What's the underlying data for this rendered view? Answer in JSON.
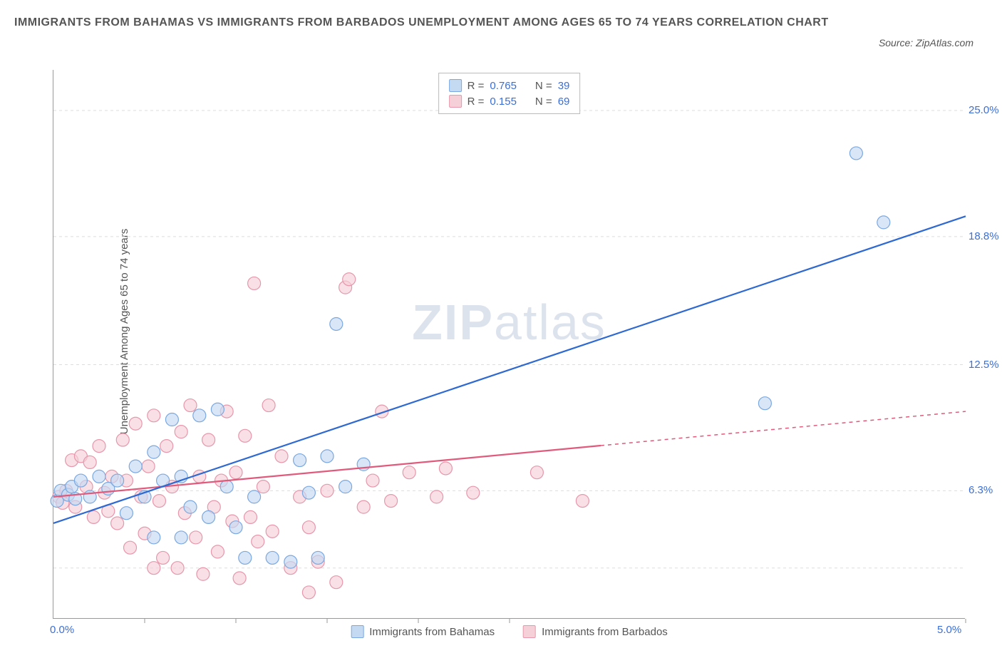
{
  "title": "IMMIGRANTS FROM BAHAMAS VS IMMIGRANTS FROM BARBADOS UNEMPLOYMENT AMONG AGES 65 TO 74 YEARS CORRELATION CHART",
  "source_label": "Source: ZipAtlas.com",
  "watermark_a": "ZIP",
  "watermark_b": "atlas",
  "chart": {
    "type": "scatter",
    "y_axis_label": "Unemployment Among Ages 65 to 74 years",
    "xlim": [
      0.0,
      5.0
    ],
    "ylim": [
      0.0,
      27.0
    ],
    "x_tick_labels": [
      {
        "pos": 0.0,
        "label": "0.0%"
      },
      {
        "pos": 5.0,
        "label": "5.0%"
      }
    ],
    "x_minor_ticks": [
      0.5,
      1.0,
      1.5,
      2.0,
      2.5,
      5.0
    ],
    "y_tick_labels": [
      {
        "pos": 6.3,
        "label": "6.3%"
      },
      {
        "pos": 12.5,
        "label": "12.5%"
      },
      {
        "pos": 18.8,
        "label": "18.8%"
      },
      {
        "pos": 25.0,
        "label": "25.0%"
      }
    ],
    "y_gridlines": [
      2.5,
      6.3,
      12.5,
      18.8,
      25.0
    ],
    "background_color": "#ffffff",
    "grid_color": "#dddddd",
    "axis_color": "#999999",
    "marker_radius": 9,
    "marker_stroke_width": 1.2,
    "series": [
      {
        "name": "Immigrants from Bahamas",
        "key": "bahamas",
        "fill_color": "#c4d9f2",
        "stroke_color": "#7aa8e0",
        "line_color": "#2e69d1",
        "R": "0.765",
        "N": "39",
        "regression": {
          "x0": 0.0,
          "y0": 4.7,
          "x1": 5.0,
          "y1": 19.8,
          "solid_until_x": 5.0
        },
        "points": [
          [
            0.02,
            5.8
          ],
          [
            0.04,
            6.3
          ],
          [
            0.08,
            6.1
          ],
          [
            0.1,
            6.5
          ],
          [
            0.12,
            5.9
          ],
          [
            0.15,
            6.8
          ],
          [
            0.2,
            6.0
          ],
          [
            0.25,
            7.0
          ],
          [
            0.3,
            6.4
          ],
          [
            0.35,
            6.8
          ],
          [
            0.4,
            5.2
          ],
          [
            0.45,
            7.5
          ],
          [
            0.5,
            6.0
          ],
          [
            0.55,
            8.2
          ],
          [
            0.6,
            6.8
          ],
          [
            0.65,
            9.8
          ],
          [
            0.7,
            7.0
          ],
          [
            0.75,
            5.5
          ],
          [
            0.8,
            10.0
          ],
          [
            0.85,
            5.0
          ],
          [
            0.9,
            10.3
          ],
          [
            0.95,
            6.5
          ],
          [
            1.0,
            4.5
          ],
          [
            1.05,
            3.0
          ],
          [
            1.1,
            6.0
          ],
          [
            1.2,
            3.0
          ],
          [
            1.3,
            2.8
          ],
          [
            1.35,
            7.8
          ],
          [
            1.4,
            6.2
          ],
          [
            1.45,
            3.0
          ],
          [
            1.5,
            8.0
          ],
          [
            1.55,
            14.5
          ],
          [
            1.6,
            6.5
          ],
          [
            1.7,
            7.6
          ],
          [
            3.9,
            10.6
          ],
          [
            4.4,
            22.9
          ],
          [
            4.55,
            19.5
          ],
          [
            0.55,
            4.0
          ],
          [
            0.7,
            4.0
          ]
        ]
      },
      {
        "name": "Immigrants from Barbados",
        "key": "barbados",
        "fill_color": "#f6d0d9",
        "stroke_color": "#e697ab",
        "line_color": "#e05a7c",
        "R": "0.155",
        "N": "69",
        "regression": {
          "x0": 0.0,
          "y0": 6.0,
          "x1": 5.0,
          "y1": 10.2,
          "solid_until_x": 3.0
        },
        "points": [
          [
            0.03,
            6.0
          ],
          [
            0.05,
            5.7
          ],
          [
            0.07,
            6.3
          ],
          [
            0.1,
            7.8
          ],
          [
            0.12,
            5.5
          ],
          [
            0.15,
            8.0
          ],
          [
            0.18,
            6.5
          ],
          [
            0.2,
            7.7
          ],
          [
            0.22,
            5.0
          ],
          [
            0.25,
            8.5
          ],
          [
            0.28,
            6.2
          ],
          [
            0.3,
            5.3
          ],
          [
            0.32,
            7.0
          ],
          [
            0.35,
            4.7
          ],
          [
            0.38,
            8.8
          ],
          [
            0.4,
            6.8
          ],
          [
            0.42,
            3.5
          ],
          [
            0.45,
            9.6
          ],
          [
            0.48,
            6.0
          ],
          [
            0.5,
            4.2
          ],
          [
            0.52,
            7.5
          ],
          [
            0.55,
            10.0
          ],
          [
            0.58,
            5.8
          ],
          [
            0.6,
            3.0
          ],
          [
            0.62,
            8.5
          ],
          [
            0.65,
            6.5
          ],
          [
            0.68,
            2.5
          ],
          [
            0.7,
            9.2
          ],
          [
            0.72,
            5.2
          ],
          [
            0.75,
            10.5
          ],
          [
            0.78,
            4.0
          ],
          [
            0.8,
            7.0
          ],
          [
            0.82,
            2.2
          ],
          [
            0.85,
            8.8
          ],
          [
            0.88,
            5.5
          ],
          [
            0.9,
            3.3
          ],
          [
            0.92,
            6.8
          ],
          [
            0.95,
            10.2
          ],
          [
            0.98,
            4.8
          ],
          [
            1.0,
            7.2
          ],
          [
            1.02,
            2.0
          ],
          [
            1.05,
            9.0
          ],
          [
            1.08,
            5.0
          ],
          [
            1.1,
            16.5
          ],
          [
            1.12,
            3.8
          ],
          [
            1.15,
            6.5
          ],
          [
            1.18,
            10.5
          ],
          [
            1.2,
            4.3
          ],
          [
            1.25,
            8.0
          ],
          [
            1.3,
            2.5
          ],
          [
            1.35,
            6.0
          ],
          [
            1.4,
            4.5
          ],
          [
            1.45,
            2.8
          ],
          [
            1.5,
            6.3
          ],
          [
            1.55,
            1.8
          ],
          [
            1.6,
            16.3
          ],
          [
            1.62,
            16.7
          ],
          [
            1.7,
            5.5
          ],
          [
            1.75,
            6.8
          ],
          [
            1.8,
            10.2
          ],
          [
            1.85,
            5.8
          ],
          [
            1.95,
            7.2
          ],
          [
            2.1,
            6.0
          ],
          [
            2.15,
            7.4
          ],
          [
            2.3,
            6.2
          ],
          [
            2.65,
            7.2
          ],
          [
            2.9,
            5.8
          ],
          [
            1.4,
            1.3
          ],
          [
            0.55,
            2.5
          ]
        ]
      }
    ]
  },
  "legend_top_labels": {
    "R": "R =",
    "N": "N ="
  },
  "legend_bottom": [
    {
      "label": "Immigrants from Bahamas",
      "fill": "#c4d9f2",
      "stroke": "#7aa8e0"
    },
    {
      "label": "Immigrants from Barbados",
      "fill": "#f6d0d9",
      "stroke": "#e697ab"
    }
  ]
}
